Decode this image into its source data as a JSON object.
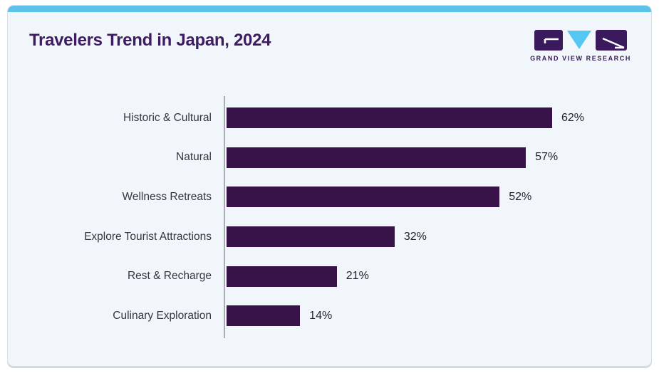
{
  "page": {
    "title": "Travelers Trend in Japan, 2024"
  },
  "logo": {
    "name": "grand-view-research-logo",
    "text": "GRAND VIEW RESEARCH"
  },
  "colors": {
    "accent_strip": "#5cc2e9",
    "card_background": "#f1f6fa",
    "card_border": "#d9dee3",
    "title": "#3e1c61",
    "bar": "#38134a",
    "axis": "#a9adb4",
    "category_label": "#35353f",
    "value_label": "#24242c",
    "logo_purple": "#3a1a5c",
    "logo_blue": "#56c7f2"
  },
  "chart_data": {
    "type": "bar",
    "orientation": "horizontal",
    "title": "Travelers Trend in Japan, 2024",
    "xlabel": "",
    "ylabel": "",
    "xlim": [
      0,
      100
    ],
    "grid": false,
    "legend": null,
    "categories": [
      "Historic & Cultural",
      "Natural",
      "Wellness Retreats",
      "Explore Tourist Attractions",
      "Rest & Recharge",
      "Culinary Exploration"
    ],
    "values": [
      62,
      57,
      52,
      32,
      21,
      14
    ],
    "value_labels": [
      "62%",
      "57%",
      "52%",
      "32%",
      "21%",
      "14%"
    ]
  }
}
